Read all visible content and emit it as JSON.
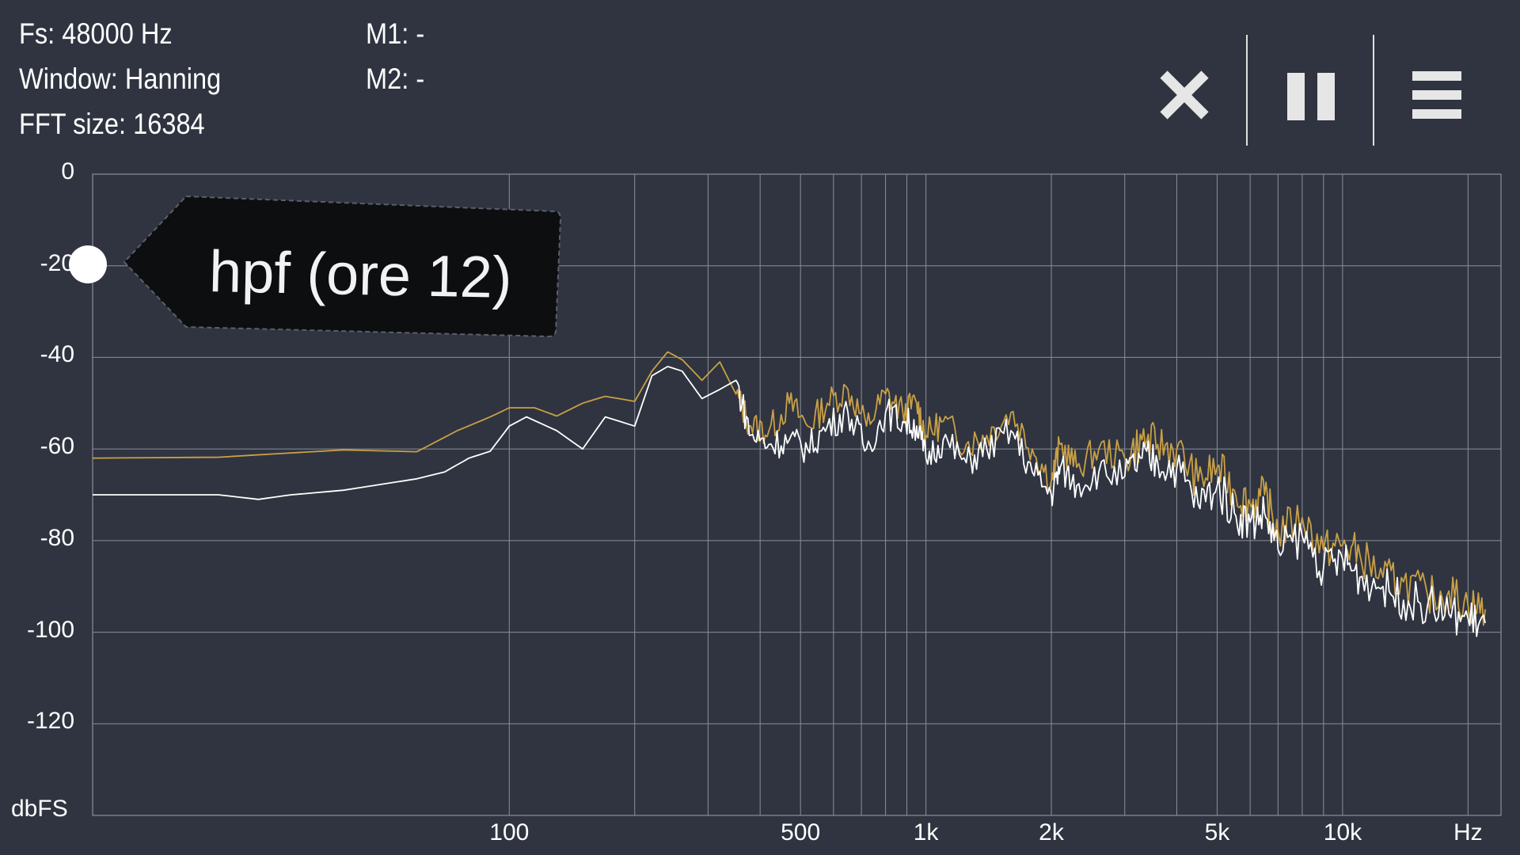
{
  "info": {
    "fs": "Fs: 48000 Hz",
    "window": "Window: Hanning",
    "fft_size": "FFT size: 16384",
    "m1": "M1: -",
    "m2": "M2: -"
  },
  "toolbar": {
    "close_icon": "close-icon",
    "pause_icon": "pause-icon",
    "menu_icon": "menu-icon"
  },
  "tag": {
    "label": "hpf (ore 12)"
  },
  "colors": {
    "background": "#2f3440",
    "grid": "#8a8f99",
    "series_white": "#ffffff",
    "series_gold": "#c9a046",
    "tag_bg": "#0d0e10"
  },
  "chart_data": {
    "type": "line",
    "x_scale": "log",
    "y_unit_label": "dbFS",
    "x_unit_label": "Hz",
    "xlim": [
      10,
      24000
    ],
    "ylim": [
      -140,
      0
    ],
    "y_ticks": [
      "0",
      "-20",
      "-40",
      "-60",
      "-80",
      "-100",
      "-120"
    ],
    "y_tick_values": [
      0,
      -20,
      -40,
      -60,
      -80,
      -100,
      -120
    ],
    "x_tick_labels": [
      {
        "label": "100",
        "value": 100
      },
      {
        "label": "500",
        "value": 500
      },
      {
        "label": "1k",
        "value": 1000
      },
      {
        "label": "2k",
        "value": 2000
      },
      {
        "label": "5k",
        "value": 5000
      },
      {
        "label": "10k",
        "value": 10000
      },
      {
        "label": "Hz",
        "value": 20000
      }
    ],
    "grid_x_values": [
      100,
      200,
      300,
      400,
      500,
      600,
      700,
      800,
      900,
      1000,
      2000,
      3000,
      4000,
      5000,
      6000,
      7000,
      8000,
      9000,
      10000,
      20000
    ],
    "grid_y_values": [
      0,
      -20,
      -40,
      -60,
      -80,
      -100,
      -120,
      -140
    ],
    "grid": true,
    "series": [
      {
        "color": "#c9a046",
        "x": [
          10,
          20,
          40,
          60,
          75,
          90,
          100,
          115,
          130,
          150,
          170,
          200,
          220,
          240,
          260,
          290,
          320,
          350,
          380,
          420,
          470,
          520,
          580,
          650,
          720,
          800,
          880,
          950,
          1000,
          1100,
          1250,
          1400,
          1600,
          1800,
          2000,
          2100,
          2300,
          2600,
          3000,
          3300,
          3600,
          4000,
          4500,
          5000,
          5500,
          6000,
          6500,
          7000,
          8000,
          9000,
          10000,
          11000,
          12500,
          14000,
          16000,
          18000,
          20000,
          22000
        ],
        "y": [
          -62,
          -61.8,
          -60.2,
          -60.6,
          -56,
          -53,
          -51,
          -51,
          -52.8,
          -50,
          -48.5,
          -49.6,
          -43,
          -38.8,
          -40.5,
          -45,
          -41,
          -48,
          -55,
          -56,
          -50,
          -55,
          -50,
          -47,
          -55,
          -48,
          -52,
          -50,
          -57,
          -54,
          -59,
          -57,
          -52,
          -60,
          -67,
          -59,
          -64,
          -60,
          -62,
          -58,
          -59,
          -60,
          -67,
          -64,
          -69,
          -72,
          -70,
          -78,
          -75,
          -82,
          -81,
          -83,
          -88,
          -89,
          -92,
          -91,
          -94,
          -95
        ]
      },
      {
        "color": "#ffffff",
        "x": [
          10,
          20,
          25,
          30,
          40,
          60,
          70,
          80,
          90,
          100,
          110,
          130,
          150,
          170,
          200,
          220,
          240,
          260,
          290,
          320,
          350,
          380,
          420,
          470,
          520,
          580,
          650,
          720,
          800,
          880,
          950,
          1000,
          1100,
          1250,
          1400,
          1600,
          1800,
          2000,
          2100,
          2300,
          2600,
          3000,
          3300,
          3600,
          4000,
          4500,
          5000,
          5500,
          6000,
          6500,
          7000,
          8000,
          9000,
          10000,
          11000,
          12500,
          14000,
          16000,
          18000,
          20000,
          22000
        ],
        "y": [
          -70,
          -70,
          -71,
          -70,
          -69,
          -66.5,
          -65,
          -62,
          -60.5,
          -55,
          -53,
          -56,
          -60,
          -53,
          -55,
          -44,
          -42,
          -43,
          -49,
          -47,
          -45,
          -57,
          -59,
          -58,
          -60,
          -55,
          -52,
          -60,
          -52,
          -54,
          -55,
          -62,
          -58,
          -63,
          -60,
          -56,
          -65,
          -70,
          -64,
          -68,
          -65,
          -66,
          -62,
          -63,
          -64,
          -72,
          -68,
          -74,
          -76,
          -74,
          -82,
          -79,
          -86,
          -84,
          -88,
          -90,
          -93,
          -94,
          -96,
          -97,
          -98
        ]
      }
    ]
  }
}
